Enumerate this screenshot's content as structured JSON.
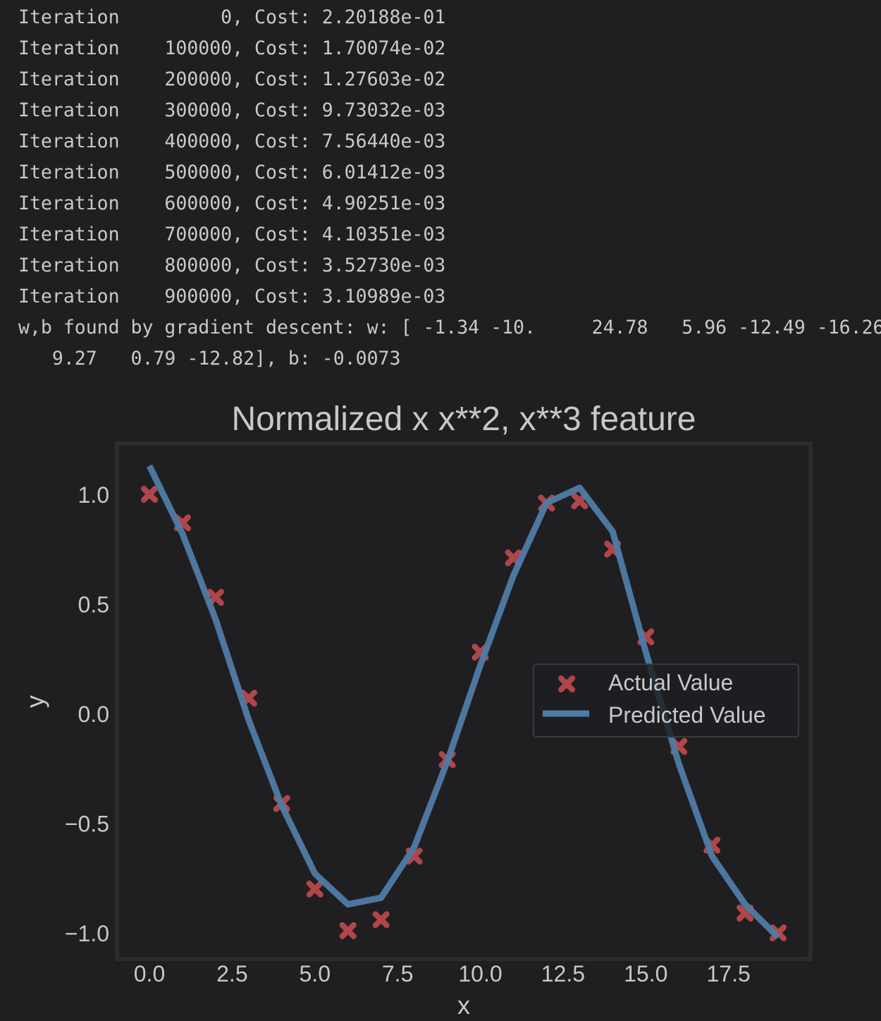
{
  "console": {
    "lines": [
      "Iteration         0, Cost: 2.20188e-01",
      "Iteration    100000, Cost: 1.70074e-02",
      "Iteration    200000, Cost: 1.27603e-02",
      "Iteration    300000, Cost: 9.73032e-03",
      "Iteration    400000, Cost: 7.56440e-03",
      "Iteration    500000, Cost: 6.01412e-03",
      "Iteration    600000, Cost: 4.90251e-03",
      "Iteration    700000, Cost: 4.10351e-03",
      "Iteration    800000, Cost: 3.52730e-03",
      "Iteration    900000, Cost: 3.10989e-03",
      "w,b found by gradient descent: w: [ -1.34 -10.     24.78   5.96 -12.49 -16.26",
      "   9.27   0.79 -12.82], b: -0.0073"
    ]
  },
  "chart_data": {
    "type": "line",
    "title": "Normalized x x**2, x**3 feature",
    "xlabel": "x",
    "ylabel": "y",
    "xlim": [
      -1,
      20
    ],
    "ylim": [
      -1.1,
      1.2
    ],
    "xticks": [
      "0.0",
      "2.5",
      "5.0",
      "7.5",
      "10.0",
      "12.5",
      "15.0",
      "17.5"
    ],
    "xtick_values": [
      0,
      2.5,
      5,
      7.5,
      10,
      12.5,
      15,
      17.5
    ],
    "yticks": [
      "1.0",
      "0.5",
      "0.0",
      "−0.5",
      "−1.0"
    ],
    "ytick_values": [
      1.0,
      0.5,
      0.0,
      -0.5,
      -1.0
    ],
    "grid": false,
    "legend_position": "center-right",
    "series": [
      {
        "name": "Actual Value",
        "kind": "scatter",
        "marker": "x",
        "color": "#b04649",
        "x": [
          0,
          1,
          2,
          3,
          4,
          5,
          6,
          7,
          8,
          9,
          10,
          11,
          12,
          13,
          14,
          15,
          16,
          17,
          18,
          19
        ],
        "y": [
          1.0,
          0.87,
          0.53,
          0.07,
          -0.41,
          -0.8,
          -0.99,
          -0.94,
          -0.65,
          -0.21,
          0.28,
          0.71,
          0.96,
          0.97,
          0.75,
          0.35,
          -0.15,
          -0.6,
          -0.91,
          -1.0
        ]
      },
      {
        "name": "Predicted Value",
        "kind": "line",
        "color": "#4f7ca6",
        "x": [
          0,
          1,
          2,
          3,
          4,
          5,
          6,
          7,
          8,
          9,
          10,
          11,
          12,
          13,
          14,
          15,
          16,
          17,
          18,
          19
        ],
        "y": [
          1.13,
          0.82,
          0.43,
          -0.03,
          -0.42,
          -0.73,
          -0.87,
          -0.84,
          -0.61,
          -0.22,
          0.22,
          0.63,
          0.96,
          1.03,
          0.83,
          0.28,
          -0.23,
          -0.65,
          -0.87,
          -1.02
        ]
      }
    ]
  }
}
